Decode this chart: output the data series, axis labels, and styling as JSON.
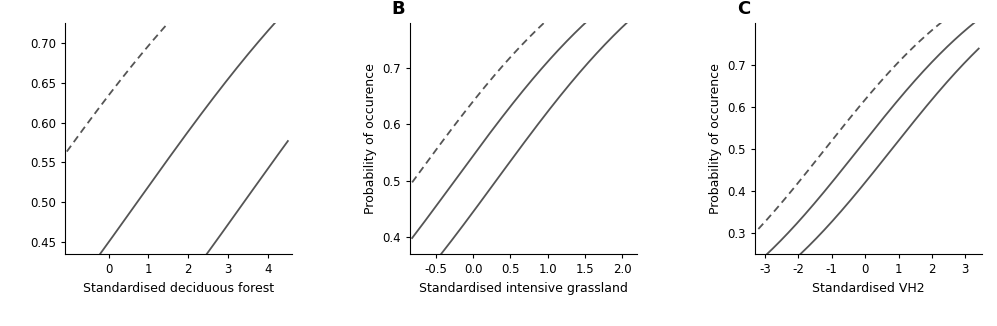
{
  "panels": [
    {
      "label": "",
      "xlabel": "Standardised deciduous forest",
      "ylabel": "",
      "xlim": [
        -1.1,
        4.6
      ],
      "ylim": [
        0.435,
        0.725
      ],
      "xticks": [
        0,
        1,
        2,
        3,
        4
      ],
      "yticks": [
        0.45,
        0.5,
        0.55,
        0.6,
        0.65,
        0.7
      ],
      "ytick_labels": [
        "0.45",
        "0.50",
        "0.55",
        "0.60",
        "0.65",
        "0.70"
      ],
      "x_range": [
        -1.05,
        4.5
      ],
      "logit_intercept_mean": -0.2,
      "logit_beta_mean": 0.28,
      "logit_intercept_upper": 0.55,
      "logit_beta_upper": 0.28,
      "logit_intercept_lower": -0.95,
      "logit_beta_lower": 0.28
    },
    {
      "label": "B",
      "xlabel": "Standardised intensive grassland",
      "ylabel": "Probability of occurence",
      "xlim": [
        -0.85,
        2.2
      ],
      "ylim": [
        0.37,
        0.78
      ],
      "xticks": [
        -0.5,
        0.0,
        0.5,
        1.0,
        1.5,
        2.0
      ],
      "yticks": [
        0.4,
        0.5,
        0.6,
        0.7
      ],
      "ytick_labels": [
        "0.4",
        "0.5",
        "0.6",
        "0.7"
      ],
      "x_range": [
        -0.82,
        2.15
      ],
      "logit_intercept_mean": 0.18,
      "logit_beta_mean": 0.72,
      "logit_intercept_upper": 0.58,
      "logit_beta_upper": 0.72,
      "logit_intercept_lower": -0.22,
      "logit_beta_lower": 0.72
    },
    {
      "label": "C",
      "xlabel": "Standardised VH2",
      "ylabel": "Probability of occurence",
      "xlim": [
        -3.3,
        3.5
      ],
      "ylim": [
        0.25,
        0.8
      ],
      "xticks": [
        -3,
        -2,
        -1,
        0,
        1,
        2,
        3
      ],
      "yticks": [
        0.3,
        0.4,
        0.5,
        0.6,
        0.7
      ],
      "ytick_labels": [
        "0.3",
        "0.4",
        "0.5",
        "0.6",
        "0.7"
      ],
      "x_range": [
        -3.2,
        3.4
      ],
      "logit_intercept_mean": 0.08,
      "logit_beta_mean": 0.4,
      "logit_intercept_upper": 0.48,
      "logit_beta_upper": 0.4,
      "logit_intercept_lower": -0.32,
      "logit_beta_lower": 0.4
    }
  ],
  "line_color": "#555555",
  "line_width": 1.3,
  "fontsize_label": 9,
  "fontsize_tick": 8.5,
  "fontsize_panel_label": 13,
  "background_color": "#ffffff"
}
